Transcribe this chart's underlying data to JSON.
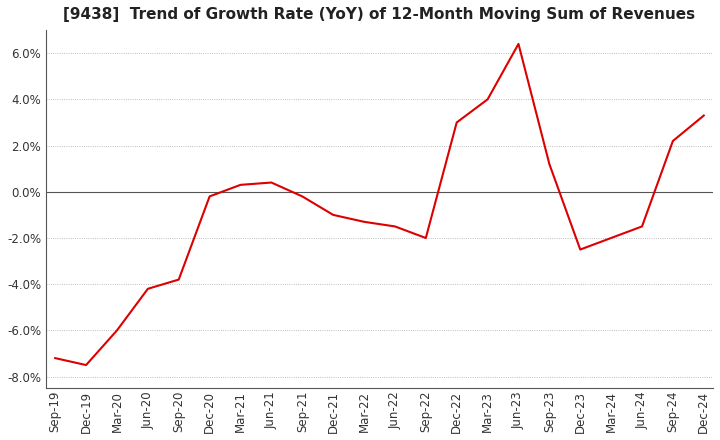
{
  "title": "[9438]  Trend of Growth Rate (YoY) of 12-Month Moving Sum of Revenues",
  "x_labels": [
    "Sep-19",
    "Dec-19",
    "Mar-20",
    "Jun-20",
    "Sep-20",
    "Dec-20",
    "Mar-21",
    "Jun-21",
    "Sep-21",
    "Dec-21",
    "Mar-22",
    "Jun-22",
    "Sep-22",
    "Dec-22",
    "Mar-23",
    "Jun-23",
    "Sep-23",
    "Dec-23",
    "Mar-24",
    "Jun-24",
    "Sep-24",
    "Dec-24"
  ],
  "y_values": [
    -7.2,
    -7.5,
    -6.0,
    -4.2,
    -3.8,
    -0.2,
    0.3,
    0.4,
    -0.2,
    -1.0,
    -1.3,
    -1.5,
    -2.0,
    3.0,
    4.0,
    6.4,
    1.2,
    -2.5,
    -2.0,
    -1.5,
    2.2,
    3.3
  ],
  "line_color": "#dd0000",
  "ylim": [
    -8.5,
    7.0
  ],
  "yticks": [
    -8.0,
    -6.0,
    -4.0,
    -2.0,
    0.0,
    2.0,
    4.0,
    6.0
  ],
  "grid_color": "#aaaaaa",
  "background_color": "#ffffff",
  "title_fontsize": 11,
  "tick_fontsize": 8.5
}
